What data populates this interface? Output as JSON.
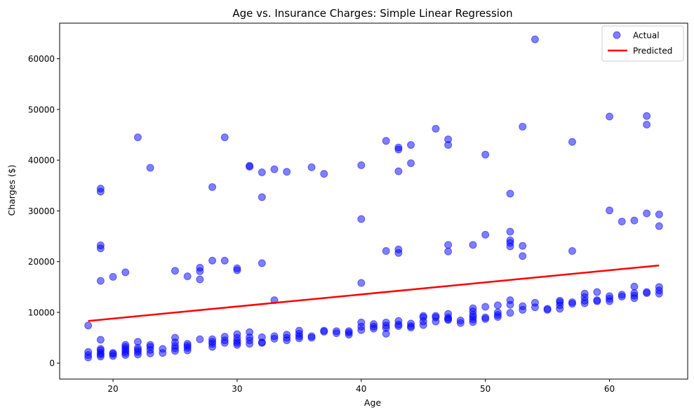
{
  "chart_data": {
    "type": "scatter",
    "title": "Age vs. Insurance Charges: Simple Linear Regression",
    "xlabel": "Age",
    "ylabel": "Charges ($)",
    "xlim": [
      15.7,
      66.3
    ],
    "ylim": [
      -3150,
      67000
    ],
    "xticks": [
      20,
      30,
      40,
      50,
      60
    ],
    "yticks": [
      0,
      10000,
      20000,
      30000,
      40000,
      50000,
      60000
    ],
    "grid": false,
    "legend_position": "top-right",
    "series": [
      {
        "name": "Actual",
        "kind": "scatter",
        "color": "#0000ff",
        "alpha": 0.5,
        "points": [
          [
            18,
            1100
          ],
          [
            18,
            1600
          ],
          [
            18,
            2200
          ],
          [
            18,
            7400
          ],
          [
            19,
            1300
          ],
          [
            19,
            1700
          ],
          [
            19,
            2000
          ],
          [
            19,
            2500
          ],
          [
            19,
            2800
          ],
          [
            19,
            4600
          ],
          [
            19,
            16200
          ],
          [
            19,
            22600
          ],
          [
            19,
            23200
          ],
          [
            19,
            33800
          ],
          [
            19,
            34400
          ],
          [
            20,
            1400
          ],
          [
            20,
            1800
          ],
          [
            20,
            2000
          ],
          [
            20,
            17000
          ],
          [
            21,
            1600
          ],
          [
            21,
            2000
          ],
          [
            21,
            2400
          ],
          [
            21,
            2800
          ],
          [
            21,
            3200
          ],
          [
            21,
            3600
          ],
          [
            21,
            17900
          ],
          [
            22,
            1700
          ],
          [
            22,
            2200
          ],
          [
            22,
            2600
          ],
          [
            22,
            3000
          ],
          [
            22,
            4200
          ],
          [
            22,
            44500
          ],
          [
            23,
            1900
          ],
          [
            23,
            2600
          ],
          [
            23,
            3200
          ],
          [
            23,
            3600
          ],
          [
            23,
            38500
          ],
          [
            24,
            2000
          ],
          [
            24,
            2800
          ],
          [
            25,
            2400
          ],
          [
            25,
            2900
          ],
          [
            25,
            3400
          ],
          [
            25,
            4100
          ],
          [
            25,
            5000
          ],
          [
            25,
            18200
          ],
          [
            26,
            2500
          ],
          [
            26,
            3000
          ],
          [
            26,
            3400
          ],
          [
            26,
            3800
          ],
          [
            26,
            17100
          ],
          [
            27,
            4700
          ],
          [
            27,
            16500
          ],
          [
            27,
            18100
          ],
          [
            27,
            18800
          ],
          [
            28,
            3200
          ],
          [
            28,
            3800
          ],
          [
            28,
            4200
          ],
          [
            28,
            4700
          ],
          [
            28,
            20200
          ],
          [
            28,
            34700
          ],
          [
            29,
            4000
          ],
          [
            29,
            4500
          ],
          [
            29,
            5200
          ],
          [
            29,
            20200
          ],
          [
            29,
            44500
          ],
          [
            30,
            3600
          ],
          [
            30,
            4000
          ],
          [
            30,
            4400
          ],
          [
            30,
            5000
          ],
          [
            30,
            5700
          ],
          [
            30,
            18300
          ],
          [
            30,
            18700
          ],
          [
            31,
            3800
          ],
          [
            31,
            4500
          ],
          [
            31,
            5100
          ],
          [
            31,
            6100
          ],
          [
            31,
            38700
          ],
          [
            31,
            38900
          ],
          [
            32,
            4000
          ],
          [
            32,
            4100
          ],
          [
            32,
            5100
          ],
          [
            32,
            19700
          ],
          [
            32,
            32700
          ],
          [
            32,
            37600
          ],
          [
            33,
            4800
          ],
          [
            33,
            5300
          ],
          [
            33,
            12400
          ],
          [
            33,
            38200
          ],
          [
            34,
            4500
          ],
          [
            34,
            5000
          ],
          [
            34,
            5600
          ],
          [
            34,
            37700
          ],
          [
            35,
            4900
          ],
          [
            35,
            5300
          ],
          [
            35,
            5800
          ],
          [
            35,
            6400
          ],
          [
            36,
            5000
          ],
          [
            36,
            5300
          ],
          [
            36,
            38600
          ],
          [
            37,
            6200
          ],
          [
            37,
            6400
          ],
          [
            37,
            37300
          ],
          [
            38,
            5900
          ],
          [
            38,
            6300
          ],
          [
            39,
            5600
          ],
          [
            39,
            6000
          ],
          [
            39,
            6300
          ],
          [
            40,
            6500
          ],
          [
            40,
            7200
          ],
          [
            40,
            8000
          ],
          [
            40,
            15800
          ],
          [
            40,
            28400
          ],
          [
            40,
            39000
          ],
          [
            41,
            6800
          ],
          [
            41,
            7200
          ],
          [
            41,
            7700
          ],
          [
            42,
            5800
          ],
          [
            42,
            6900
          ],
          [
            42,
            7400
          ],
          [
            42,
            8000
          ],
          [
            42,
            22100
          ],
          [
            42,
            43800
          ],
          [
            43,
            7300
          ],
          [
            43,
            7600
          ],
          [
            43,
            8300
          ],
          [
            43,
            21700
          ],
          [
            43,
            22400
          ],
          [
            43,
            37800
          ],
          [
            43,
            42100
          ],
          [
            43,
            42500
          ],
          [
            44,
            7000
          ],
          [
            44,
            7300
          ],
          [
            44,
            7800
          ],
          [
            44,
            39400
          ],
          [
            44,
            43000
          ],
          [
            45,
            7500
          ],
          [
            45,
            8200
          ],
          [
            45,
            9000
          ],
          [
            45,
            9300
          ],
          [
            46,
            8200
          ],
          [
            46,
            9000
          ],
          [
            46,
            9300
          ],
          [
            46,
            46200
          ],
          [
            47,
            8500
          ],
          [
            47,
            8700
          ],
          [
            47,
            9000
          ],
          [
            47,
            9700
          ],
          [
            47,
            22000
          ],
          [
            47,
            23300
          ],
          [
            47,
            43000
          ],
          [
            47,
            44100
          ],
          [
            48,
            7900
          ],
          [
            48,
            8400
          ],
          [
            49,
            8100
          ],
          [
            49,
            8600
          ],
          [
            49,
            9100
          ],
          [
            49,
            9500
          ],
          [
            49,
            10200
          ],
          [
            49,
            10800
          ],
          [
            49,
            23300
          ],
          [
            50,
            8700
          ],
          [
            50,
            9000
          ],
          [
            50,
            11100
          ],
          [
            50,
            25300
          ],
          [
            50,
            41100
          ],
          [
            51,
            9100
          ],
          [
            51,
            9500
          ],
          [
            51,
            10000
          ],
          [
            51,
            11400
          ],
          [
            52,
            9900
          ],
          [
            52,
            11500
          ],
          [
            52,
            12400
          ],
          [
            52,
            23000
          ],
          [
            52,
            23700
          ],
          [
            52,
            24200
          ],
          [
            52,
            25900
          ],
          [
            52,
            33400
          ],
          [
            53,
            10500
          ],
          [
            53,
            11200
          ],
          [
            53,
            21100
          ],
          [
            53,
            23100
          ],
          [
            53,
            46600
          ],
          [
            54,
            11000
          ],
          [
            54,
            11900
          ],
          [
            54,
            63800
          ],
          [
            55,
            10500
          ],
          [
            55,
            10700
          ],
          [
            56,
            10700
          ],
          [
            56,
            11400
          ],
          [
            56,
            12000
          ],
          [
            56,
            12300
          ],
          [
            57,
            11700
          ],
          [
            57,
            12000
          ],
          [
            57,
            22100
          ],
          [
            57,
            43600
          ],
          [
            58,
            11800
          ],
          [
            58,
            12300
          ],
          [
            58,
            13000
          ],
          [
            58,
            13700
          ],
          [
            59,
            12200
          ],
          [
            59,
            12400
          ],
          [
            59,
            14000
          ],
          [
            60,
            12200
          ],
          [
            60,
            12700
          ],
          [
            60,
            13200
          ],
          [
            60,
            30100
          ],
          [
            60,
            48600
          ],
          [
            61,
            13100
          ],
          [
            61,
            13500
          ],
          [
            61,
            27900
          ],
          [
            62,
            12800
          ],
          [
            62,
            13300
          ],
          [
            62,
            13800
          ],
          [
            62,
            15100
          ],
          [
            62,
            28100
          ],
          [
            63,
            13800
          ],
          [
            63,
            14000
          ],
          [
            63,
            29500
          ],
          [
            63,
            47000
          ],
          [
            63,
            48700
          ],
          [
            64,
            13700
          ],
          [
            64,
            14300
          ],
          [
            64,
            15000
          ],
          [
            64,
            27000
          ],
          [
            64,
            29300
          ]
        ]
      },
      {
        "name": "Predicted",
        "kind": "line",
        "color": "#ff0000",
        "points": [
          [
            18,
            8300
          ],
          [
            64,
            19250
          ]
        ]
      }
    ]
  }
}
